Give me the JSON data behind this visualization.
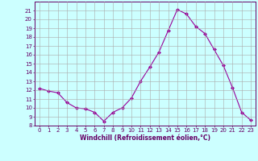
{
  "x": [
    0,
    1,
    2,
    3,
    4,
    5,
    6,
    7,
    8,
    9,
    10,
    11,
    12,
    13,
    14,
    15,
    16,
    17,
    18,
    19,
    20,
    21,
    22,
    23
  ],
  "y": [
    12.2,
    11.9,
    11.7,
    10.6,
    10.0,
    9.9,
    9.5,
    8.5,
    9.5,
    10.0,
    11.1,
    13.0,
    14.6,
    16.3,
    18.7,
    21.1,
    20.6,
    19.2,
    18.4,
    16.6,
    14.8,
    12.3,
    9.5,
    8.6
  ],
  "line_color": "#990099",
  "marker": "D",
  "marker_size": 2.0,
  "bg_color": "#ccffff",
  "grid_color": "#aaaaaa",
  "xlabel": "Windchill (Refroidissement éolien,°C)",
  "ylabel": "",
  "title": "",
  "xlim": [
    -0.5,
    23.5
  ],
  "ylim": [
    8,
    22
  ],
  "yticks": [
    8,
    9,
    10,
    11,
    12,
    13,
    14,
    15,
    16,
    17,
    18,
    19,
    20,
    21
  ],
  "xticks": [
    0,
    1,
    2,
    3,
    4,
    5,
    6,
    7,
    8,
    9,
    10,
    11,
    12,
    13,
    14,
    15,
    16,
    17,
    18,
    19,
    20,
    21,
    22,
    23
  ],
  "label_color": "#660066",
  "tick_color": "#660066",
  "spine_color": "#660066",
  "xlabel_fontsize": 5.5,
  "tick_fontsize": 5.0,
  "xlabel_fontweight": "bold"
}
